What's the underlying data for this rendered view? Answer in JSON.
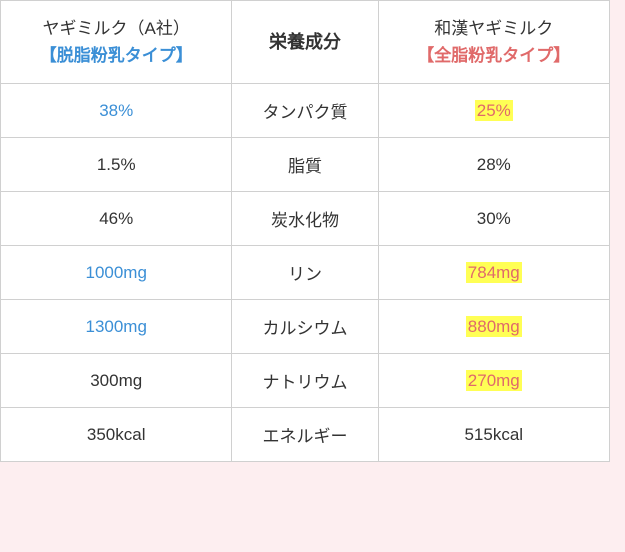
{
  "header": {
    "left": {
      "title": "ヤギミルク（A社）",
      "subtype": "【脱脂粉乳タイプ】"
    },
    "middle": "栄養成分",
    "right": {
      "title": "和漢ヤギミルク",
      "subtype": "【全脂粉乳タイプ】"
    }
  },
  "rows": [
    {
      "left": "38%",
      "left_style": "blue",
      "label": "タンパク質",
      "right": "25%",
      "right_style": "red_hl"
    },
    {
      "left": "1.5%",
      "left_style": "plain",
      "label": "脂質",
      "right": "28%",
      "right_style": "plain"
    },
    {
      "left": "46%",
      "left_style": "plain",
      "label": "炭水化物",
      "right": "30%",
      "right_style": "plain"
    },
    {
      "left": "1000mg",
      "left_style": "blue",
      "label": "リン",
      "right": "784mg",
      "right_style": "red_hl"
    },
    {
      "left": "1300mg",
      "left_style": "blue",
      "label": "カルシウム",
      "right": "880mg",
      "right_style": "red_hl"
    },
    {
      "left": "300mg",
      "left_style": "plain",
      "label": "ナトリウム",
      "right": "270mg",
      "right_style": "red_hl"
    },
    {
      "left": "350kcal",
      "left_style": "plain",
      "label": "エネルギー",
      "right": "515kcal",
      "right_style": "plain"
    }
  ],
  "colors": {
    "blue": "#3b8fd6",
    "red": "#e06a6a",
    "highlight": "#ffff55",
    "border": "#d0d0d0",
    "text": "#333333",
    "page_bg": "#ffffff",
    "outer_bg": "#fdeef0"
  }
}
